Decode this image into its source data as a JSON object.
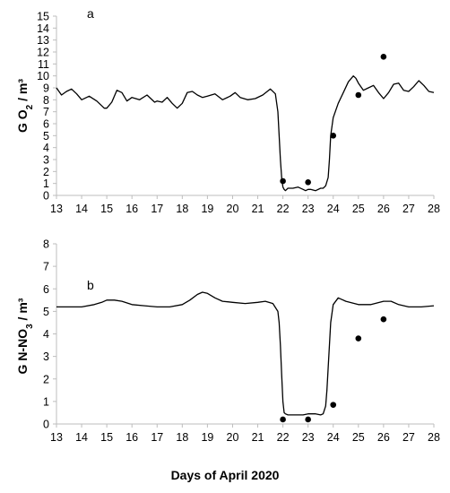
{
  "figure": {
    "xlabel": "Days of April 2020"
  },
  "chart_data": [
    {
      "type": "line",
      "panel": "a",
      "ylabel": "G O2 / m³",
      "ylabel_parts": {
        "pre": "G O",
        "sub": "2",
        "post": " / m³"
      },
      "xlim": [
        13,
        28
      ],
      "ylim": [
        0,
        15
      ],
      "yticks": [
        0,
        1,
        2,
        3,
        4,
        5,
        6,
        7,
        8,
        9,
        10,
        11,
        12,
        13,
        14,
        15
      ],
      "xticks": [
        13,
        14,
        15,
        16,
        17,
        18,
        19,
        20,
        21,
        22,
        23,
        24,
        25,
        26,
        27,
        28
      ],
      "grid": false,
      "series": [
        {
          "kind": "line",
          "x": [
            13.0,
            13.2,
            13.4,
            13.6,
            13.8,
            14.0,
            14.3,
            14.6,
            14.9,
            15.0,
            15.2,
            15.4,
            15.6,
            15.8,
            16.0,
            16.3,
            16.6,
            16.9,
            17.0,
            17.2,
            17.4,
            17.6,
            17.8,
            18.0,
            18.2,
            18.4,
            18.6,
            18.8,
            19.0,
            19.3,
            19.6,
            19.9,
            20.1,
            20.3,
            20.6,
            20.9,
            21.2,
            21.5,
            21.7,
            21.8,
            21.85,
            21.9,
            21.95,
            22.0,
            22.05,
            22.1,
            22.2,
            22.4,
            22.6,
            22.8,
            22.9,
            23.0,
            23.1,
            23.3,
            23.5,
            23.6,
            23.7,
            23.8,
            23.85,
            23.9,
            24.0,
            24.2,
            24.4,
            24.6,
            24.8,
            24.9,
            25.0,
            25.2,
            25.4,
            25.6,
            25.8,
            26.0,
            26.2,
            26.4,
            26.6,
            26.8,
            27.0,
            27.2,
            27.4,
            27.6,
            27.8,
            28.0
          ],
          "y": [
            9.0,
            8.4,
            8.7,
            8.9,
            8.5,
            8.0,
            8.3,
            7.9,
            7.3,
            7.3,
            7.8,
            8.8,
            8.6,
            7.9,
            8.2,
            8.0,
            8.4,
            7.8,
            7.9,
            7.8,
            8.2,
            7.7,
            7.3,
            7.7,
            8.6,
            8.7,
            8.4,
            8.2,
            8.3,
            8.5,
            8.0,
            8.3,
            8.6,
            8.2,
            8.0,
            8.1,
            8.4,
            8.9,
            8.5,
            7.0,
            5.0,
            3.0,
            1.5,
            0.7,
            0.5,
            0.4,
            0.6,
            0.6,
            0.7,
            0.5,
            0.4,
            0.5,
            0.5,
            0.4,
            0.6,
            0.6,
            0.8,
            1.5,
            3.0,
            5.0,
            6.5,
            7.7,
            8.6,
            9.5,
            10.0,
            9.8,
            9.4,
            8.8,
            9.0,
            9.2,
            8.6,
            8.1,
            8.6,
            9.3,
            9.4,
            8.8,
            8.7,
            9.1,
            9.6,
            9.2,
            8.7,
            8.6
          ]
        },
        {
          "kind": "scatter",
          "x": [
            22,
            23,
            24,
            25,
            26
          ],
          "y": [
            1.2,
            1.1,
            5.0,
            8.4,
            11.6
          ]
        }
      ]
    },
    {
      "type": "line",
      "panel": "b",
      "ylabel": "G N-NO3 / m³",
      "ylabel_parts": {
        "pre": "G N-NO",
        "sub": "3",
        "post": " / m³"
      },
      "xlim": [
        13,
        28
      ],
      "ylim": [
        0,
        8
      ],
      "yticks": [
        0,
        1,
        2,
        3,
        4,
        5,
        6,
        7,
        8
      ],
      "xticks": [
        13,
        14,
        15,
        16,
        17,
        18,
        19,
        20,
        21,
        22,
        23,
        24,
        25,
        26,
        27,
        28
      ],
      "grid": false,
      "series": [
        {
          "kind": "line",
          "x": [
            13.0,
            13.5,
            14.0,
            14.5,
            14.8,
            15.0,
            15.3,
            15.6,
            16.0,
            16.5,
            17.0,
            17.5,
            18.0,
            18.3,
            18.6,
            18.8,
            19.0,
            19.3,
            19.6,
            20.0,
            20.5,
            21.0,
            21.3,
            21.6,
            21.8,
            21.85,
            21.9,
            21.95,
            22.0,
            22.05,
            22.1,
            22.2,
            22.5,
            22.8,
            23.0,
            23.3,
            23.5,
            23.6,
            23.7,
            23.75,
            23.8,
            23.85,
            23.9,
            24.0,
            24.2,
            24.5,
            25.0,
            25.5,
            26.0,
            26.3,
            26.6,
            27.0,
            27.5,
            28.0
          ],
          "y": [
            5.2,
            5.2,
            5.2,
            5.3,
            5.4,
            5.5,
            5.5,
            5.45,
            5.3,
            5.25,
            5.2,
            5.2,
            5.3,
            5.5,
            5.75,
            5.85,
            5.8,
            5.6,
            5.45,
            5.4,
            5.35,
            5.4,
            5.45,
            5.35,
            5.0,
            4.5,
            3.5,
            2.2,
            1.0,
            0.5,
            0.45,
            0.4,
            0.4,
            0.4,
            0.45,
            0.45,
            0.4,
            0.45,
            0.8,
            1.5,
            2.5,
            3.5,
            4.5,
            5.3,
            5.6,
            5.45,
            5.3,
            5.3,
            5.45,
            5.45,
            5.3,
            5.2,
            5.2,
            5.25
          ]
        },
        {
          "kind": "scatter",
          "x": [
            22,
            23,
            24,
            25,
            26
          ],
          "y": [
            0.2,
            0.2,
            0.85,
            3.8,
            4.65
          ]
        }
      ]
    }
  ]
}
